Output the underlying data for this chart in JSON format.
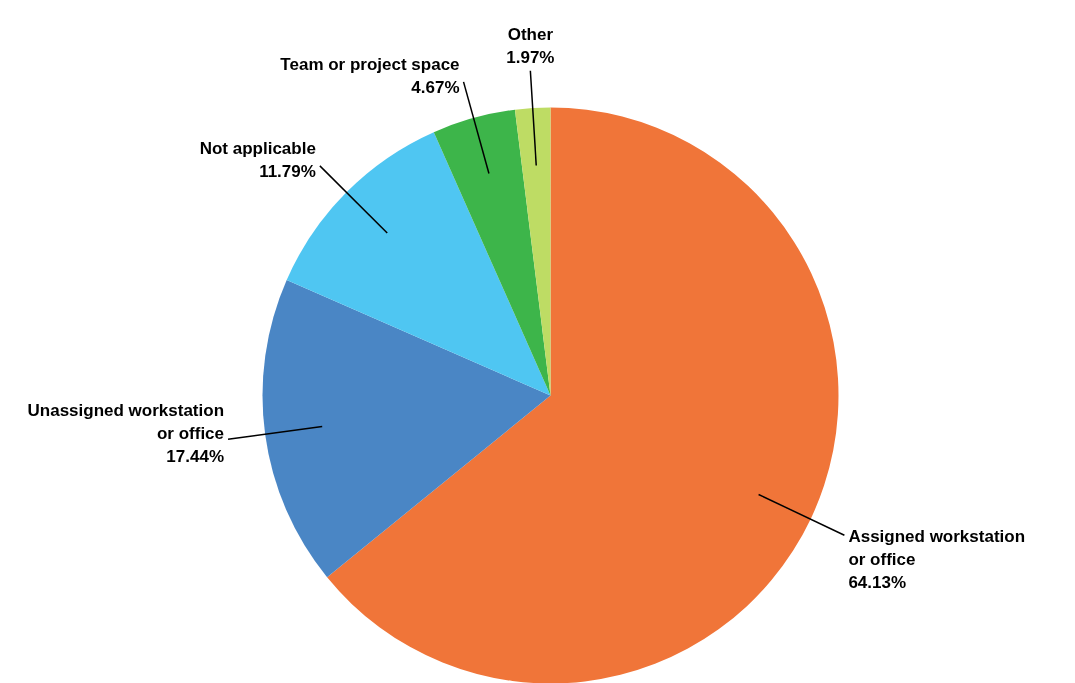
{
  "chart_data": {
    "type": "pie",
    "categories": [
      "Assigned workstation or office",
      "Unassigned workstation or office",
      "Not applicable",
      "Team or project space",
      "Other"
    ],
    "values": [
      64.13,
      17.44,
      11.79,
      4.67,
      1.97
    ],
    "colors": [
      "#f07539",
      "#4a86c5",
      "#4fc6f2",
      "#3db54a",
      "#bedc64"
    ],
    "value_labels": [
      "64.13%",
      "17.44%",
      "11.79%",
      "4.67%",
      "1.97%"
    ],
    "data_labels": true
  }
}
